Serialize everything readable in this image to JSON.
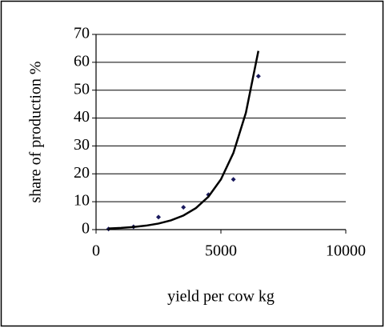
{
  "chart_data": {
    "type": "scatter",
    "xlabel": "yield per cow kg",
    "ylabel": "share of production %",
    "xlim": [
      0,
      10000
    ],
    "xticks": [
      0,
      5000,
      10000
    ],
    "ylim": [
      0,
      70
    ],
    "yticks": [
      0,
      10,
      20,
      30,
      40,
      50,
      60,
      70
    ],
    "grid": true,
    "series": [
      {
        "kind": "markers",
        "color": "#1a1a5e",
        "x": [
          500,
          1500,
          2500,
          3500,
          4500,
          5500,
          6500
        ],
        "values": [
          0.2,
          1,
          4.5,
          8,
          12.5,
          18,
          55
        ]
      },
      {
        "kind": "line",
        "color": "#000000",
        "x": [
          500,
          1000,
          1500,
          2000,
          2500,
          3000,
          3500,
          4000,
          4500,
          5000,
          5500,
          6000,
          6500
        ],
        "values": [
          0.4,
          0.61,
          0.93,
          1.42,
          2.17,
          3.31,
          5.06,
          7.73,
          11.8,
          18.0,
          27.5,
          41.9,
          64.1
        ]
      }
    ]
  }
}
